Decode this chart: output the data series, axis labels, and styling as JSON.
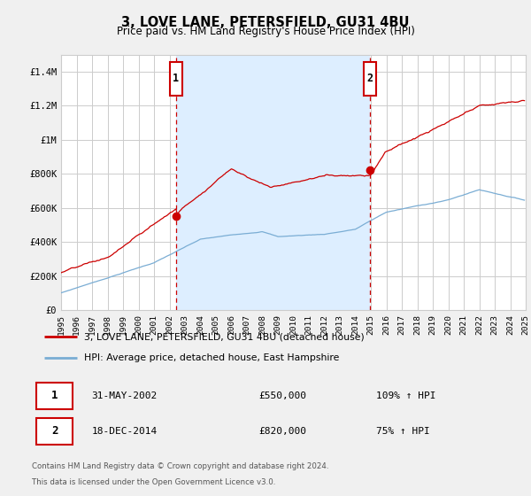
{
  "title": "3, LOVE LANE, PETERSFIELD, GU31 4BU",
  "subtitle": "Price paid vs. HM Land Registry's House Price Index (HPI)",
  "line1_label": "3, LOVE LANE, PETERSFIELD, GU31 4BU (detached house)",
  "line2_label": "HPI: Average price, detached house, East Hampshire",
  "line1_color": "#cc0000",
  "line2_color": "#7aadd4",
  "shade_color": "#ddeeff",
  "sale1_date": 2002.42,
  "sale1_price": 550000,
  "sale1_date_str": "31-MAY-2002",
  "sale1_pct": "109%",
  "sale2_date": 2014.96,
  "sale2_price": 820000,
  "sale2_date_str": "18-DEC-2014",
  "sale2_pct": "75%",
  "footnote_line1": "Contains HM Land Registry data © Crown copyright and database right 2024.",
  "footnote_line2": "This data is licensed under the Open Government Licence v3.0.",
  "ylim": [
    0,
    1500000
  ],
  "yticks": [
    0,
    200000,
    400000,
    600000,
    800000,
    1000000,
    1200000,
    1400000
  ],
  "ytick_labels": [
    "£0",
    "£200K",
    "£400K",
    "£600K",
    "£800K",
    "£1M",
    "£1.2M",
    "£1.4M"
  ],
  "xlim_start": 1995,
  "xlim_end": 2025,
  "background_color": "#f0f0f0",
  "plot_bg_color": "#ffffff",
  "grid_color": "#cccccc",
  "vline_color": "#cc0000",
  "annotation_box_color": "#cc0000"
}
